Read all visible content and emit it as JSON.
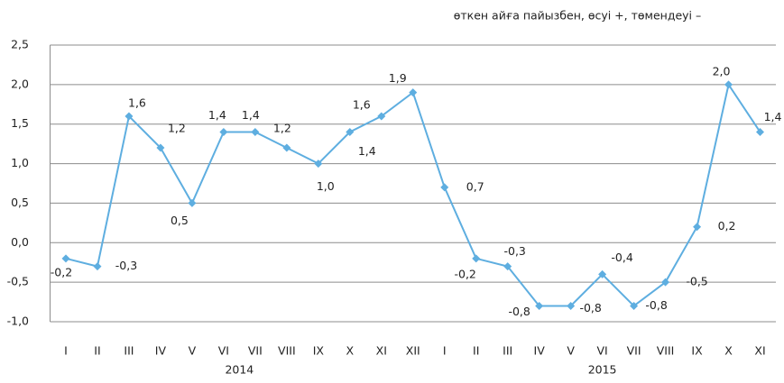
{
  "chart_data": {
    "type": "line",
    "subtitle": "өткен айға пайызбен, өсуі +, төмендеуі –",
    "category_groups": [
      {
        "name": "2014",
        "categories": [
          "I",
          "II",
          "III",
          "IV",
          "V",
          "VI",
          "VII",
          "VIII",
          "IX",
          "X",
          "XI",
          "XII"
        ]
      },
      {
        "name": "2015",
        "categories": [
          "I",
          "II",
          "III",
          "IV",
          "V",
          "VI",
          "VII",
          "VIII",
          "IX",
          "X",
          "XI"
        ]
      }
    ],
    "series": [
      {
        "color": "#5eaee0",
        "values": [
          -0.2,
          -0.3,
          1.6,
          1.2,
          0.5,
          1.4,
          1.4,
          1.2,
          1.0,
          1.4,
          1.6,
          1.9,
          0.7,
          -0.2,
          -0.3,
          -0.8,
          -0.8,
          -0.4,
          -0.8,
          -0.5,
          0.2,
          2.0,
          1.4
        ],
        "value_labels": [
          "-0,2",
          "-0,3",
          "1,6",
          "1,2",
          "0,5",
          "1,4",
          "1,4",
          "1,2",
          "1,0",
          "1,4",
          "1,6",
          "1,9",
          "0,7",
          "-0,2",
          "-0,3",
          "-0,8",
          "-0,8",
          "-0,4",
          "-0,8",
          "-0,5",
          "0,2",
          "2,0",
          "1,4"
        ]
      }
    ],
    "ylim": [
      -1.0,
      2.5
    ],
    "yticks": [
      {
        "value": -1.0,
        "label": "-1,0"
      },
      {
        "value": -0.5,
        "label": "-0,5"
      },
      {
        "value": 0,
        "label": "0,0"
      },
      {
        "value": 0.5,
        "label": "0,5"
      },
      {
        "value": 1.0,
        "label": "1,0"
      },
      {
        "value": 1.5,
        "label": "1,5"
      },
      {
        "value": 2.0,
        "label": "2,0"
      },
      {
        "value": 2.5,
        "label": "2,5"
      }
    ],
    "grid": true
  }
}
